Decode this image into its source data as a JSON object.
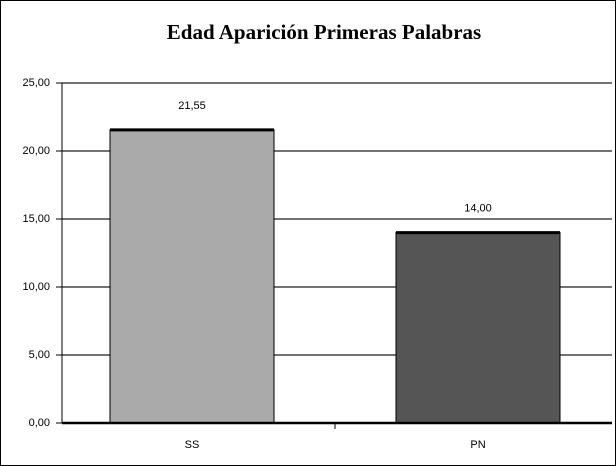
{
  "chart_data": {
    "type": "bar",
    "title": "Edad Aparición Primeras Palabras",
    "categories": [
      "SS",
      "PN"
    ],
    "values": [
      21.55,
      14.0
    ],
    "value_labels": [
      "21,55",
      "14,00"
    ],
    "colors": [
      "#aaaaaa",
      "#555555"
    ],
    "ylim": [
      0,
      25
    ],
    "yticks": [
      {
        "value": 0,
        "label": "0,00"
      },
      {
        "value": 5,
        "label": "5,00"
      },
      {
        "value": 10,
        "label": "10,00"
      },
      {
        "value": 15,
        "label": "15,00"
      },
      {
        "value": 20,
        "label": "20,00"
      },
      {
        "value": 25,
        "label": "25,00"
      }
    ],
    "grid": true
  }
}
